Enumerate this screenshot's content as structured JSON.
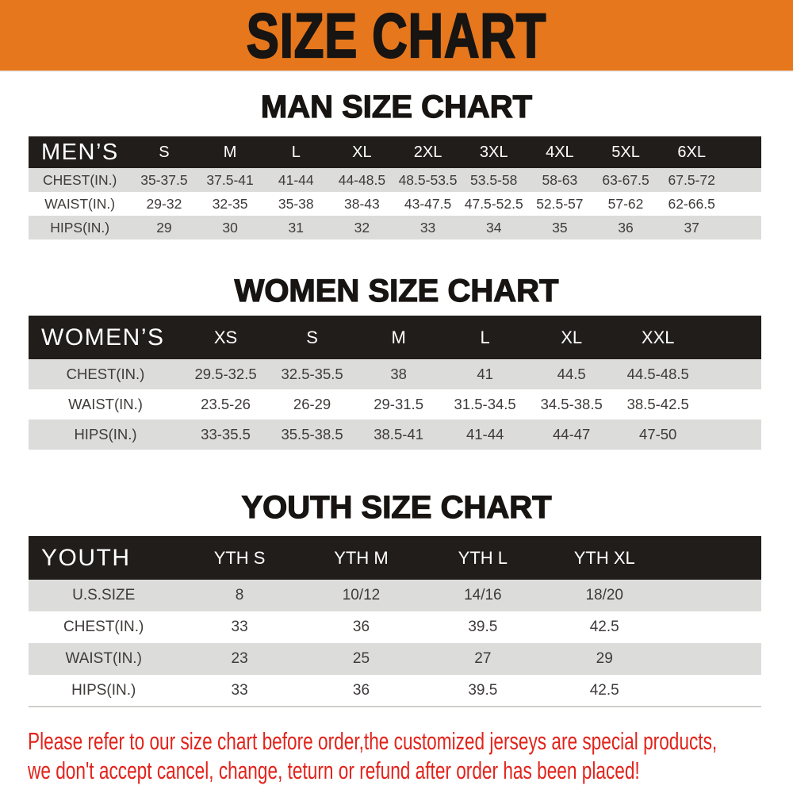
{
  "banner": {
    "title": "SIZE CHART"
  },
  "sections": [
    {
      "id": "mens",
      "heading": "MAN SIZE CHART",
      "table": {
        "group_label": "MEN’S",
        "columns": [
          "S",
          "M",
          "L",
          "XL",
          "2XL",
          "3XL",
          "4XL",
          "5XL",
          "6XL"
        ],
        "rows": [
          {
            "label": "CHEST(IN.)",
            "values": [
              "35-37.5",
              "37.5-41",
              "41-44",
              "44-48.5",
              "48.5-53.5",
              "53.5-58",
              "58-63",
              "63-67.5",
              "67.5-72"
            ]
          },
          {
            "label": "WAIST(IN.)",
            "values": [
              "29-32",
              "32-35",
              "35-38",
              "38-43",
              "43-47.5",
              "47.5-52.5",
              "52.5-57",
              "57-62",
              "62-66.5"
            ]
          },
          {
            "label": "HIPS(IN.)",
            "values": [
              "29",
              "30",
              "31",
              "32",
              "33",
              "34",
              "35",
              "36",
              "37"
            ]
          }
        ]
      }
    },
    {
      "id": "womens",
      "heading": "WOMEN SIZE CHART",
      "table": {
        "group_label": "WOMEN’S",
        "columns": [
          "XS",
          "S",
          "M",
          "L",
          "XL",
          "XXL"
        ],
        "rows": [
          {
            "label": "CHEST(IN.)",
            "values": [
              "29.5-32.5",
              "32.5-35.5",
              "38",
              "41",
              "44.5",
              "44.5-48.5"
            ]
          },
          {
            "label": "WAIST(IN.)",
            "values": [
              "23.5-26",
              "26-29",
              "29-31.5",
              "31.5-34.5",
              "34.5-38.5",
              "38.5-42.5"
            ]
          },
          {
            "label": "HIPS(IN.)",
            "values": [
              "33-35.5",
              "35.5-38.5",
              "38.5-41",
              "41-44",
              "44-47",
              "47-50"
            ]
          }
        ]
      }
    },
    {
      "id": "youth",
      "heading": "YOUTH SIZE CHART",
      "table": {
        "group_label": "YOUTH",
        "columns": [
          "YTH S",
          "YTH M",
          "YTH L",
          "YTH XL"
        ],
        "rows": [
          {
            "label": "U.S.SIZE",
            "values": [
              "8",
              "10/12",
              "14/16",
              "18/20"
            ]
          },
          {
            "label": "CHEST(IN.)",
            "values": [
              "33",
              "36",
              "39.5",
              "42.5"
            ]
          },
          {
            "label": "WAIST(IN.)",
            "values": [
              "23",
              "25",
              "27",
              "29"
            ]
          },
          {
            "label": "HIPS(IN.)",
            "values": [
              "33",
              "36",
              "39.5",
              "42.5"
            ]
          }
        ]
      }
    }
  ],
  "footer": {
    "line1": "Please refer to our size chart before order,the customized jerseys are special products,",
    "line2": "we don't accept cancel, change, teturn or refund after order has been placed!"
  },
  "colors": {
    "banner_orange": "#e6771c",
    "bar_black": "#211d1b",
    "row_gray": "#dcdcda",
    "notice_red": "#e2231b",
    "text_dark": "#3e3b3a"
  }
}
